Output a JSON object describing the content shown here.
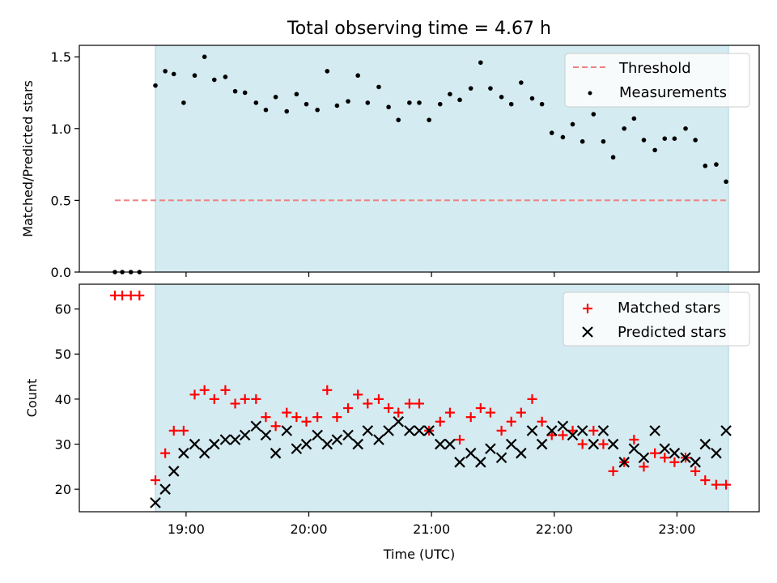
{
  "chart_data": [
    {
      "type": "scatter",
      "title": "Total observing time = 4.67 h",
      "xlabel": "",
      "ylabel": "Matched/Predicted stars",
      "ylim": [
        0,
        1.58
      ],
      "yticks": [
        "0.0",
        "0.5",
        "1.0",
        "1.5"
      ],
      "ytick_values": [
        0,
        0.5,
        1.0,
        1.5
      ],
      "x_is_time_hours": true,
      "xlim": [
        18.13,
        23.67
      ],
      "xticks": [
        19,
        20,
        21,
        22,
        23
      ],
      "show_xtick_labels": false,
      "observing_window": [
        18.75,
        23.42
      ],
      "window_color": "#d4ebf1",
      "legend_position": "upper right",
      "threshold": {
        "name": "Threshold",
        "y": 0.5,
        "x_range": [
          18.42,
          23.42
        ],
        "color": "#f08080",
        "style": "dashed"
      },
      "series": [
        {
          "name": "Measurements",
          "marker": "dot",
          "color": "#000000",
          "x": [
            18.42,
            18.48,
            18.55,
            18.62,
            18.75,
            18.83,
            18.9,
            18.98,
            19.07,
            19.15,
            19.23,
            19.32,
            19.4,
            19.48,
            19.57,
            19.65,
            19.73,
            19.82,
            19.9,
            19.98,
            20.07,
            20.15,
            20.23,
            20.32,
            20.4,
            20.48,
            20.57,
            20.65,
            20.73,
            20.82,
            20.9,
            20.98,
            21.07,
            21.15,
            21.23,
            21.32,
            21.4,
            21.48,
            21.57,
            21.65,
            21.73,
            21.82,
            21.9,
            21.98,
            22.07,
            22.15,
            22.23,
            22.32,
            22.4,
            22.48,
            22.57,
            22.65,
            22.73,
            22.82,
            22.9,
            22.98,
            23.07,
            23.15,
            23.23,
            23.32,
            23.4
          ],
          "y": [
            0,
            0,
            0,
            0,
            1.3,
            1.4,
            1.38,
            1.18,
            1.37,
            1.5,
            1.34,
            1.36,
            1.26,
            1.25,
            1.18,
            1.13,
            1.22,
            1.12,
            1.24,
            1.17,
            1.13,
            1.4,
            1.16,
            1.19,
            1.37,
            1.18,
            1.29,
            1.15,
            1.06,
            1.18,
            1.18,
            1.06,
            1.17,
            1.24,
            1.2,
            1.28,
            1.46,
            1.28,
            1.22,
            1.17,
            1.32,
            1.21,
            1.17,
            0.97,
            0.94,
            1.03,
            0.91,
            1.1,
            0.91,
            0.8,
            1.0,
            1.07,
            0.92,
            0.85,
            0.93,
            0.93,
            1.0,
            0.92,
            0.74,
            0.75,
            0.63
          ]
        }
      ]
    },
    {
      "type": "scatter",
      "title": "",
      "xlabel": "Time (UTC)",
      "ylabel": "Count",
      "ylim": [
        15,
        65.5
      ],
      "yticks": [
        "20",
        "30",
        "40",
        "50",
        "60"
      ],
      "ytick_values": [
        20,
        30,
        40,
        50,
        60
      ],
      "x_is_time_hours": true,
      "xlim": [
        18.13,
        23.67
      ],
      "xticks": [
        19,
        20,
        21,
        22,
        23
      ],
      "xtick_labels": [
        "19:00",
        "20:00",
        "21:00",
        "22:00",
        "23:00"
      ],
      "show_xtick_labels": true,
      "observing_window": [
        18.75,
        23.42
      ],
      "window_color": "#d4ebf1",
      "legend_position": "upper right",
      "series": [
        {
          "name": "Matched stars",
          "marker": "plus",
          "color": "#ff0000",
          "x": [
            18.42,
            18.48,
            18.55,
            18.62,
            18.75,
            18.83,
            18.9,
            18.98,
            19.07,
            19.15,
            19.23,
            19.32,
            19.4,
            19.48,
            19.57,
            19.65,
            19.73,
            19.82,
            19.9,
            19.98,
            20.07,
            20.15,
            20.23,
            20.32,
            20.4,
            20.48,
            20.57,
            20.65,
            20.73,
            20.82,
            20.9,
            20.98,
            21.07,
            21.15,
            21.23,
            21.32,
            21.4,
            21.48,
            21.57,
            21.65,
            21.73,
            21.82,
            21.9,
            21.98,
            22.07,
            22.15,
            22.23,
            22.32,
            22.4,
            22.48,
            22.57,
            22.65,
            22.73,
            22.82,
            22.9,
            22.98,
            23.07,
            23.15,
            23.23,
            23.32,
            23.4
          ],
          "y": [
            63,
            63,
            63,
            63,
            22,
            28,
            33,
            33,
            41,
            42,
            40,
            42,
            39,
            40,
            40,
            36,
            34,
            37,
            36,
            35,
            36,
            42,
            36,
            38,
            41,
            39,
            40,
            38,
            37,
            39,
            39,
            33,
            35,
            37,
            31,
            36,
            38,
            37,
            33,
            35,
            37,
            40,
            35,
            32,
            32,
            33,
            30,
            33,
            30,
            24,
            26,
            31,
            25,
            28,
            27,
            26,
            27,
            24,
            22,
            21,
            21
          ]
        },
        {
          "name": "Predicted stars",
          "marker": "x",
          "color": "#000000",
          "x": [
            18.75,
            18.83,
            18.9,
            18.98,
            19.07,
            19.15,
            19.23,
            19.32,
            19.4,
            19.48,
            19.57,
            19.65,
            19.73,
            19.82,
            19.9,
            19.98,
            20.07,
            20.15,
            20.23,
            20.32,
            20.4,
            20.48,
            20.57,
            20.65,
            20.73,
            20.82,
            20.9,
            20.98,
            21.07,
            21.15,
            21.23,
            21.32,
            21.4,
            21.48,
            21.57,
            21.65,
            21.73,
            21.82,
            21.9,
            21.98,
            22.07,
            22.15,
            22.23,
            22.32,
            22.4,
            22.48,
            22.57,
            22.65,
            22.73,
            22.82,
            22.9,
            22.98,
            23.07,
            23.15,
            23.23,
            23.32,
            23.4
          ],
          "y": [
            17,
            20,
            24,
            28,
            30,
            28,
            30,
            31,
            31,
            32,
            34,
            32,
            28,
            33,
            29,
            30,
            32,
            30,
            31,
            32,
            30,
            33,
            31,
            33,
            35,
            33,
            33,
            33,
            30,
            30,
            26,
            28,
            26,
            29,
            27,
            30,
            28,
            33,
            30,
            33,
            34,
            32,
            33,
            30,
            33,
            30,
            26,
            29,
            27,
            33,
            29,
            28,
            27,
            26,
            30,
            28,
            33
          ]
        }
      ]
    }
  ]
}
